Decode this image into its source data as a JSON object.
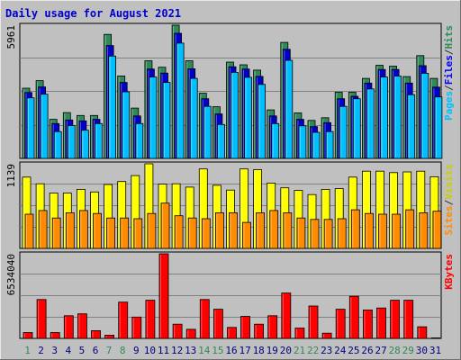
{
  "chart_data": {
    "type": "bar",
    "title": "Daily usage for August 2021",
    "x": [
      "1",
      "2",
      "3",
      "4",
      "5",
      "6",
      "7",
      "8",
      "9",
      "10",
      "11",
      "12",
      "13",
      "14",
      "15",
      "16",
      "17",
      "18",
      "19",
      "20",
      "21",
      "22",
      "23",
      "24",
      "25",
      "26",
      "27",
      "28",
      "29",
      "30",
      "31"
    ],
    "weekend_days": [
      1,
      7,
      8,
      14,
      15,
      21,
      22,
      28,
      29
    ],
    "panels": [
      {
        "id": "hits",
        "ymax_label": "5961",
        "ymax": 5961,
        "right_labels": [
          {
            "text": "Pages",
            "color": "#00c0ff"
          },
          {
            "text": "/",
            "color": "#333333"
          },
          {
            "text": "Files",
            "color": "#0000ff"
          },
          {
            "text": "/",
            "color": "#333333"
          },
          {
            "text": "Hits",
            "color": "#2e8b57"
          }
        ],
        "series": [
          {
            "name": "Hits",
            "color": "#2e8b57",
            "values": [
              3140,
              3480,
              1750,
              2050,
              1920,
              1920,
              5550,
              3690,
              2250,
              4370,
              4080,
              5960,
              4370,
              2920,
              2310,
              4310,
              4190,
              3950,
              2170,
              5190,
              2040,
              1700,
              1820,
              2960,
              2960,
              3580,
              4170,
              4130,
              3660,
              4600,
              3580
            ]
          },
          {
            "name": "Files",
            "color": "#0000cc",
            "values": [
              2950,
              3200,
              1560,
              1720,
              1680,
              1750,
              5050,
              3400,
              1900,
              4000,
              3820,
              5600,
              4010,
              2670,
              1990,
              4100,
              4000,
              3670,
              1900,
              4880,
              1750,
              1420,
              1600,
              2670,
              2780,
              3370,
              3980,
              3980,
              3370,
              4150,
              3190
            ]
          },
          {
            "name": "Pages",
            "color": "#00bfff",
            "values": [
              2710,
              2870,
              1200,
              1470,
              1260,
              1560,
              4580,
              2980,
              1560,
              3640,
              3400,
              5160,
              3580,
              2330,
              1520,
              3850,
              3630,
              3310,
              1560,
              4390,
              1460,
              1170,
              1200,
              2330,
              2670,
              3110,
              3640,
              3680,
              2850,
              3810,
              2750
            ]
          }
        ]
      },
      {
        "id": "visits",
        "ymax_label": "1139",
        "ymax": 1139,
        "right_labels": [
          {
            "text": "Sites",
            "color": "#ff8c00"
          },
          {
            "text": "/",
            "color": "#333333"
          },
          {
            "text": "Visits",
            "color": "#cccc00"
          }
        ],
        "series": [
          {
            "name": "Visits",
            "color": "#ffff00",
            "values": [
              960,
              870,
              745,
              745,
              795,
              760,
              860,
              900,
              980,
              1139,
              865,
              870,
              825,
              1070,
              850,
              785,
              1070,
              1060,
              880,
              815,
              780,
              725,
              795,
              805,
              960,
              1040,
              1040,
              1020,
              1030,
              1040,
              965
            ]
          },
          {
            "name": "Sites",
            "color": "#ff8c00",
            "values": [
              460,
              510,
              410,
              480,
              510,
              470,
              410,
              410,
              400,
              470,
              610,
              440,
              410,
              400,
              480,
              480,
              350,
              480,
              510,
              480,
              410,
              390,
              390,
              400,
              520,
              470,
              460,
              460,
              520,
              480,
              500
            ]
          }
        ]
      },
      {
        "id": "kbytes",
        "ymax_label": "6534040",
        "ymax": 6534040,
        "right_labels": [
          {
            "text": "KBytes",
            "color": "#ff0000"
          }
        ],
        "series": [
          {
            "name": "KBytes",
            "color": "#ff0000",
            "values": [
              450000,
              3000000,
              450000,
              1750000,
              1900000,
              600000,
              250000,
              2800000,
              1650000,
              2950000,
              6534040,
              1100000,
              700000,
              3000000,
              2250000,
              850000,
              1700000,
              1100000,
              1750000,
              3500000,
              800000,
              2500000,
              400000,
              2250000,
              3250000,
              2200000,
              2350000,
              2950000,
              2950000,
              900000,
              0
            ]
          }
        ]
      }
    ]
  }
}
